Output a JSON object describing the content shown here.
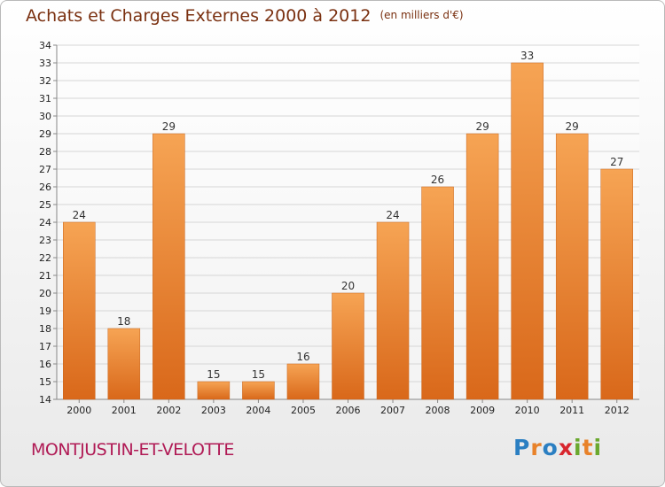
{
  "chart_data": {
    "type": "bar",
    "title": "Achats et Charges Externes 2000 à 2012",
    "unit_note": "(en milliers d'€)",
    "categories": [
      "2000",
      "2001",
      "2002",
      "2003",
      "2004",
      "2005",
      "2006",
      "2007",
      "2008",
      "2009",
      "2010",
      "2011",
      "2012"
    ],
    "values": [
      24,
      18,
      29,
      15,
      15,
      16,
      20,
      24,
      26,
      29,
      33,
      29,
      27
    ],
    "ylim": [
      14,
      34
    ],
    "yticks": [
      14,
      15,
      16,
      17,
      18,
      19,
      20,
      21,
      22,
      23,
      24,
      25,
      26,
      27,
      28,
      29,
      30,
      31,
      32,
      33,
      34
    ],
    "grid": true,
    "bar_color": "#e8822a"
  },
  "footer": {
    "town": "MONTJUSTIN-ET-VELOTTE",
    "logo_letters": [
      {
        "ch": "P",
        "color": "#2b7fc2"
      },
      {
        "ch": "r",
        "color": "#e8822a"
      },
      {
        "ch": "o",
        "color": "#2b7fc2"
      },
      {
        "ch": "x",
        "color": "#d8262e"
      },
      {
        "ch": "i",
        "color": "#6aa82e"
      },
      {
        "ch": "t",
        "color": "#e8822a"
      },
      {
        "ch": "i",
        "color": "#6aa82e"
      }
    ]
  }
}
